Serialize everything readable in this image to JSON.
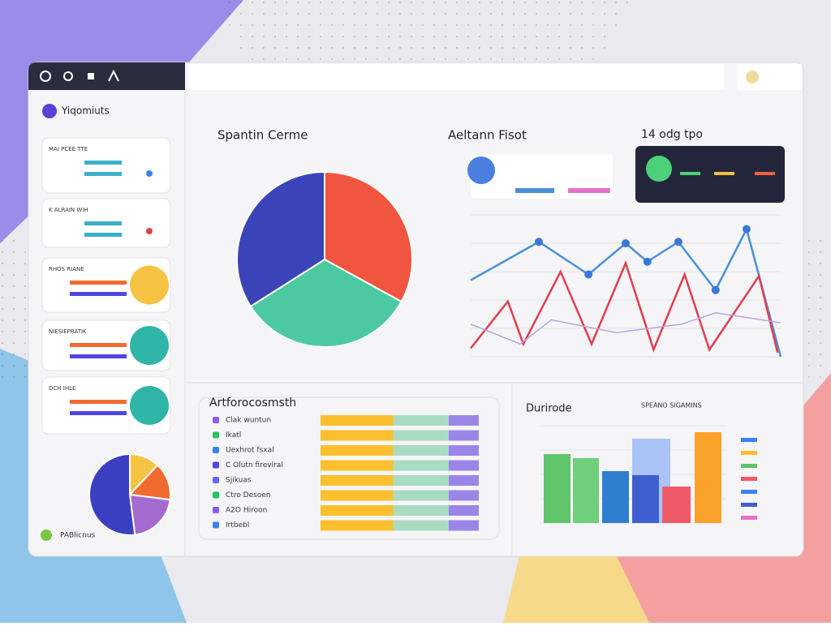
{
  "sidebar": {
    "brand": "Yiqomiuts",
    "cards": [
      {
        "label": "MAI PCEE TTE"
      },
      {
        "label": "K ALRAIN WIH"
      },
      {
        "label": "RHOS RIANE"
      },
      {
        "label": "NIESIEPRATIK"
      },
      {
        "label": "DCH IHLE"
      }
    ],
    "footer": "PABlicnus",
    "pie": {
      "values": [
        12,
        15,
        21,
        52
      ],
      "colors": [
        "#f7c344",
        "#f26b2e",
        "#a46bd0",
        "#3b3fc1"
      ]
    }
  },
  "pie_panel": {
    "title": "Spantin Cerme",
    "values": [
      33,
      33,
      34
    ],
    "colors": [
      "#f0553f",
      "#4cc9a0",
      "#3b44b8"
    ]
  },
  "line_panel": {
    "title": "Aeltann Fisot",
    "xlim": [
      0,
      100
    ],
    "ylim": [
      0,
      100
    ],
    "series": [
      {
        "color": "#4a90d9",
        "x": [
          0,
          22,
          38,
          50,
          57,
          67,
          79,
          89,
          100
        ],
        "values": [
          54,
          81,
          58,
          80,
          67,
          81,
          47,
          90,
          0
        ]
      },
      {
        "color": "#e23d4f",
        "x": [
          0,
          12,
          17,
          29,
          39,
          50,
          59,
          69,
          77,
          93,
          99
        ],
        "values": [
          6,
          39,
          9,
          60,
          9,
          66,
          5,
          58,
          5,
          57,
          3
        ]
      },
      {
        "color": "#b9a6e0",
        "x": [
          0,
          16,
          26,
          47,
          68,
          79,
          100
        ],
        "values": [
          23,
          9,
          26,
          17,
          23,
          31,
          24
        ]
      }
    ]
  },
  "dark_card": {
    "title": "14 odg tpo"
  },
  "list_panel": {
    "title": "Artforocosmsth",
    "items": [
      {
        "label": "Clak wuntun",
        "color": "#8b5cf6"
      },
      {
        "label": "Ikatl",
        "color": "#22c55e"
      },
      {
        "label": "Uexhrot fsxal",
        "color": "#3b82f6"
      },
      {
        "label": "C Olutn fireviral",
        "color": "#4f46e5"
      },
      {
        "label": "Sjikuas",
        "color": "#6366f1"
      },
      {
        "label": "Ctro Desoen",
        "color": "#22c55e"
      },
      {
        "label": "A2O Hiroon",
        "color": "#8b5cf6"
      },
      {
        "label": "Irtbebl",
        "color": "#3b82f6"
      }
    ],
    "xlim": [
      0,
      100
    ],
    "series": [
      {
        "color": "#fbc02d",
        "values": [
          46,
          46,
          46,
          46,
          46,
          46,
          46,
          46
        ]
      },
      {
        "color": "#a8dcc0",
        "values": [
          35,
          35,
          35,
          35,
          35,
          35,
          35,
          35
        ]
      },
      {
        "color": "#9b86e8",
        "values": [
          19,
          19,
          19,
          19,
          19,
          19,
          19,
          19
        ]
      }
    ]
  },
  "bar_panel": {
    "title": "Durirode",
    "subtitle": "SPEANO SIGAMINS",
    "ylim": [
      0,
      120
    ],
    "bars": [
      {
        "color": "#5fc46a",
        "value": 85
      },
      {
        "color": "#6fcf7a",
        "value": 80
      },
      {
        "color": "#2f7fd0",
        "value": 64
      },
      {
        "color": "#a9c4f5",
        "value": 104
      },
      {
        "color": "#3f5fd0",
        "value": 59
      },
      {
        "color": "#ee5a6a",
        "value": 45
      },
      {
        "color": "#fba22a",
        "value": 112
      }
    ]
  }
}
